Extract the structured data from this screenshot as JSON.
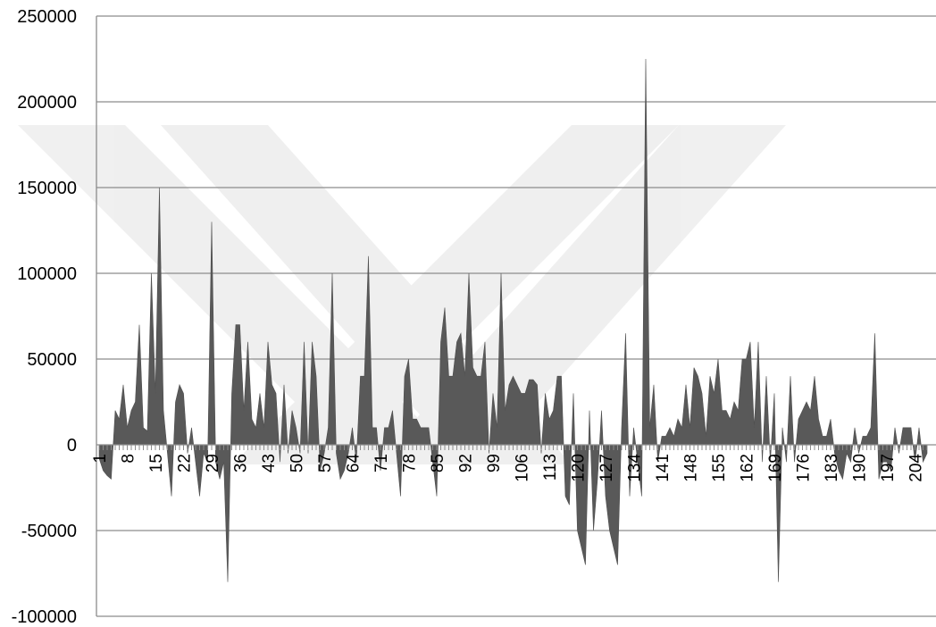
{
  "chart_data": {
    "type": "area",
    "title": "",
    "xlabel": "",
    "ylabel": "",
    "ylim": [
      -100000,
      250000
    ],
    "yticks": [
      250000,
      200000,
      150000,
      100000,
      50000,
      0,
      -50000,
      -100000
    ],
    "ytick_labels": [
      "250000",
      "200000",
      "150000",
      "100000",
      "50000",
      "0",
      "-50000",
      "-100000"
    ],
    "xticks": [
      1,
      8,
      15,
      22,
      29,
      36,
      43,
      50,
      57,
      64,
      71,
      78,
      85,
      92,
      99,
      106,
      113,
      120,
      127,
      134,
      141,
      148,
      155,
      162,
      169,
      176,
      183,
      190,
      197,
      204
    ],
    "xtick_labels": [
      "1",
      "8",
      "15",
      "22",
      "29",
      "36",
      "43",
      "50",
      "57",
      "64",
      "71",
      "78",
      "85",
      "92",
      "99",
      "106",
      "113",
      "120",
      "127",
      "134",
      "141",
      "148",
      "155",
      "162",
      "169",
      "176",
      "183",
      "190",
      "197",
      "204"
    ],
    "grid": true,
    "legend": false,
    "series": [
      {
        "color": "#595959",
        "values": [
          -8000,
          -15000,
          -18000,
          -20000,
          20000,
          15000,
          35000,
          10000,
          20000,
          25000,
          70000,
          10000,
          8000,
          100000,
          30000,
          150000,
          20000,
          -5000,
          -30000,
          25000,
          35000,
          30000,
          -5000,
          10000,
          -10000,
          -30000,
          -5000,
          -10000,
          130000,
          -10000,
          -20000,
          -10000,
          -80000,
          30000,
          70000,
          70000,
          20000,
          60000,
          15000,
          10000,
          30000,
          10000,
          60000,
          35000,
          30000,
          -10000,
          35000,
          -5000,
          20000,
          10000,
          -5000,
          60000,
          -5000,
          60000,
          40000,
          -15000,
          -5000,
          10000,
          100000,
          -5000,
          -20000,
          -15000,
          -5000,
          10000,
          -10000,
          40000,
          40000,
          110000,
          10000,
          10000,
          -15000,
          10000,
          10000,
          20000,
          -5000,
          -30000,
          40000,
          50000,
          15000,
          15000,
          10000,
          10000,
          10000,
          -10000,
          -30000,
          60000,
          80000,
          40000,
          40000,
          60000,
          65000,
          40000,
          100000,
          45000,
          40000,
          40000,
          60000,
          -5000,
          30000,
          10000,
          100000,
          20000,
          35000,
          40000,
          35000,
          30000,
          30000,
          38000,
          38000,
          35000,
          -5000,
          30000,
          15000,
          20000,
          40000,
          40000,
          -30000,
          -35000,
          30000,
          -50000,
          -60000,
          -70000,
          20000,
          -50000,
          -20000,
          20000,
          -30000,
          -50000,
          -60000,
          -70000,
          10000,
          65000,
          -30000,
          10000,
          -10000,
          -30000,
          225000,
          10000,
          35000,
          -10000,
          5000,
          5000,
          10000,
          5000,
          15000,
          10000,
          35000,
          10000,
          45000,
          40000,
          30000,
          5000,
          40000,
          30000,
          50000,
          20000,
          20000,
          15000,
          25000,
          20000,
          50000,
          50000,
          60000,
          10000,
          60000,
          -10000,
          40000,
          -10000,
          30000,
          -80000,
          10000,
          -10000,
          40000,
          -10000,
          15000,
          20000,
          25000,
          20000,
          40000,
          15000,
          5000,
          5000,
          15000,
          -5000,
          -15000,
          -20000,
          -5000,
          -10000,
          10000,
          -5000,
          5000,
          5000,
          10000,
          65000,
          -20000,
          -10000,
          -10000,
          -15000,
          10000,
          -5000,
          10000,
          10000,
          10000,
          -10000,
          10000,
          -10000,
          -5000
        ]
      }
    ]
  }
}
